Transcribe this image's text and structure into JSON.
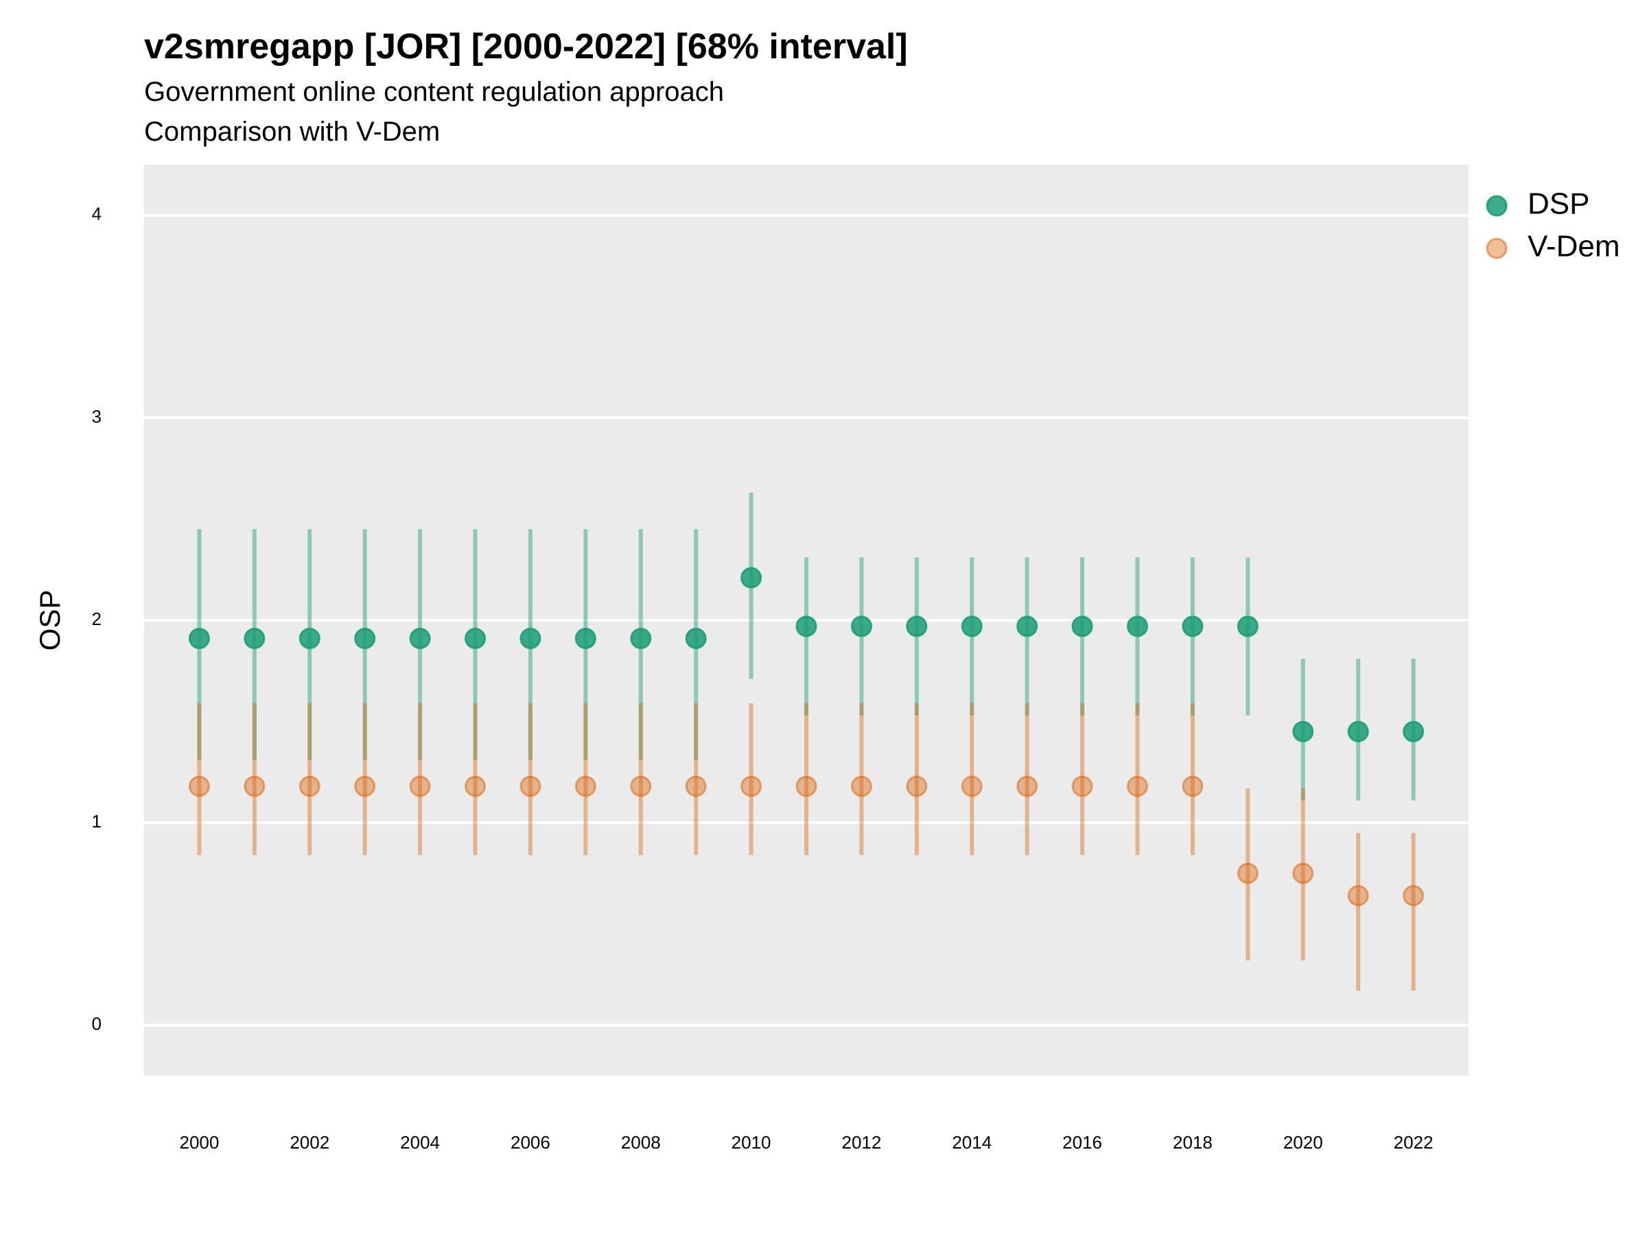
{
  "title": "v2smregapp [JOR] [2000-2022] [68% interval]",
  "subtitle_lines": [
    "Government online content regulation approach",
    "Comparison with V-Dem"
  ],
  "chart_data": {
    "type": "scatter",
    "subtype": "point-interval",
    "ylabel": "OSP",
    "xlabel": "",
    "xlim": [
      1999.0,
      2023.0
    ],
    "ylim": [
      -0.25,
      4.25
    ],
    "x_ticks": [
      2000,
      2002,
      2004,
      2006,
      2008,
      2010,
      2012,
      2014,
      2016,
      2018,
      2020,
      2022
    ],
    "y_ticks": [
      0,
      1,
      2,
      3,
      4
    ],
    "grid": "horizontal major",
    "legend_position": "right-top",
    "x": [
      2000,
      2001,
      2002,
      2003,
      2004,
      2005,
      2006,
      2007,
      2008,
      2009,
      2010,
      2011,
      2012,
      2013,
      2014,
      2015,
      2016,
      2017,
      2018,
      2019,
      2020,
      2021,
      2022
    ],
    "series": [
      {
        "name": "DSP",
        "color": "#1b9e77",
        "values": [
          1.91,
          1.91,
          1.91,
          1.91,
          1.91,
          1.91,
          1.91,
          1.91,
          1.91,
          1.91,
          2.21,
          1.97,
          1.97,
          1.97,
          1.97,
          1.97,
          1.97,
          1.97,
          1.97,
          1.97,
          1.45,
          1.45,
          1.45
        ],
        "lower": [
          1.31,
          1.31,
          1.31,
          1.31,
          1.31,
          1.31,
          1.31,
          1.31,
          1.31,
          1.31,
          1.71,
          1.53,
          1.53,
          1.53,
          1.53,
          1.53,
          1.53,
          1.53,
          1.53,
          1.53,
          1.11,
          1.11,
          1.11
        ],
        "upper": [
          2.45,
          2.45,
          2.45,
          2.45,
          2.45,
          2.45,
          2.45,
          2.45,
          2.45,
          2.45,
          2.63,
          2.31,
          2.31,
          2.31,
          2.31,
          2.31,
          2.31,
          2.31,
          2.31,
          2.31,
          1.81,
          1.81,
          1.81
        ]
      },
      {
        "name": "V-Dem",
        "color": "#d95f02",
        "values": [
          1.18,
          1.18,
          1.18,
          1.18,
          1.18,
          1.18,
          1.18,
          1.18,
          1.18,
          1.18,
          1.18,
          1.18,
          1.18,
          1.18,
          1.18,
          1.18,
          1.18,
          1.18,
          1.18,
          0.75,
          0.75,
          0.64,
          0.64
        ],
        "lower": [
          0.84,
          0.84,
          0.84,
          0.84,
          0.84,
          0.84,
          0.84,
          0.84,
          0.84,
          0.84,
          0.84,
          0.84,
          0.84,
          0.84,
          0.84,
          0.84,
          0.84,
          0.84,
          0.84,
          0.32,
          0.32,
          0.17,
          0.17
        ],
        "upper": [
          1.59,
          1.59,
          1.59,
          1.59,
          1.59,
          1.59,
          1.59,
          1.59,
          1.59,
          1.59,
          1.59,
          1.59,
          1.59,
          1.59,
          1.59,
          1.59,
          1.59,
          1.59,
          1.59,
          1.17,
          1.17,
          0.95,
          0.95
        ]
      }
    ]
  }
}
